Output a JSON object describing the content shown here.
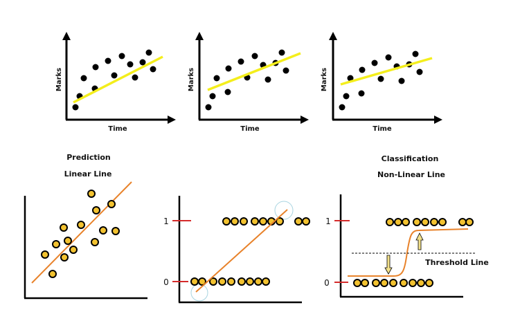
{
  "top_plots": [
    {
      "xlabel": "Time",
      "ylabel": "Marks"
    },
    {
      "xlabel": "Time",
      "ylabel": "Marks"
    },
    {
      "xlabel": "Time",
      "ylabel": "Marks"
    }
  ],
  "prediction": {
    "title": "Prediction",
    "subtitle": "Linear Line"
  },
  "middle": {
    "tick_1": "1",
    "tick_0": "0"
  },
  "classification": {
    "title": "Classification",
    "subtitle": "Non-Linear Line",
    "tick_1": "1",
    "tick_0": "0",
    "threshold_label": "Threshold Line"
  },
  "colors": {
    "dot_fill": "#f2c230",
    "orange_line": "#e8822a",
    "yellow_line": "#f4ee1c",
    "tick_red": "#d42a2a",
    "circle_blue": "#a8d4e0"
  }
}
